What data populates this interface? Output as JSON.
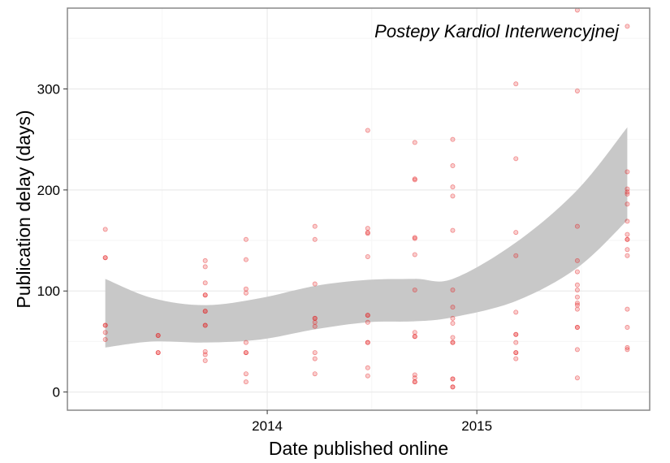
{
  "chart_data": {
    "type": "scatter",
    "title": "",
    "annotation": "Postepy Kardiol Interwencyjnej",
    "xlabel": "Date published online",
    "ylabel": "Publication delay (days)",
    "x_ticks": [
      "2014",
      "2015"
    ],
    "y_ticks": [
      0,
      100,
      200,
      300
    ],
    "xlim": [
      "2013-01-18",
      "2015-10-29"
    ],
    "ylim": [
      -18,
      380
    ],
    "grid": true,
    "legend": "none",
    "colors": {
      "points": "#e41a1c",
      "band": "#c8c8c8",
      "panel_border": "#888888",
      "grid_major": "#ebebeb",
      "grid_minor": "#f6f6f6"
    },
    "series": [
      {
        "kind": "points",
        "points": [
          [
            "2013-03-25",
            161
          ],
          [
            "2013-03-25",
            133
          ],
          [
            "2013-03-25",
            133
          ],
          [
            "2013-03-25",
            66
          ],
          [
            "2013-03-25",
            66
          ],
          [
            "2013-03-25",
            59
          ],
          [
            "2013-03-25",
            52
          ],
          [
            "2013-06-25",
            56
          ],
          [
            "2013-06-25",
            56
          ],
          [
            "2013-06-25",
            39
          ],
          [
            "2013-06-25",
            39
          ],
          [
            "2013-09-15",
            130
          ],
          [
            "2013-09-15",
            124
          ],
          [
            "2013-09-15",
            108
          ],
          [
            "2013-09-15",
            96
          ],
          [
            "2013-09-15",
            96
          ],
          [
            "2013-09-15",
            80
          ],
          [
            "2013-09-15",
            80
          ],
          [
            "2013-09-15",
            66
          ],
          [
            "2013-09-15",
            66
          ],
          [
            "2013-09-15",
            40
          ],
          [
            "2013-09-15",
            37
          ],
          [
            "2013-09-15",
            31
          ],
          [
            "2013-11-25",
            151
          ],
          [
            "2013-11-25",
            131
          ],
          [
            "2013-11-25",
            102
          ],
          [
            "2013-11-25",
            98
          ],
          [
            "2013-11-25",
            49
          ],
          [
            "2013-11-25",
            39
          ],
          [
            "2013-11-25",
            39
          ],
          [
            "2013-11-25",
            18
          ],
          [
            "2013-11-25",
            10
          ],
          [
            "2014-03-25",
            164
          ],
          [
            "2014-03-25",
            151
          ],
          [
            "2014-03-25",
            107
          ],
          [
            "2014-03-25",
            73
          ],
          [
            "2014-03-25",
            73
          ],
          [
            "2014-03-25",
            69
          ],
          [
            "2014-03-25",
            65
          ],
          [
            "2014-03-25",
            39
          ],
          [
            "2014-03-25",
            33
          ],
          [
            "2014-03-25",
            18
          ],
          [
            "2014-06-25",
            259
          ],
          [
            "2014-06-25",
            162
          ],
          [
            "2014-06-25",
            158
          ],
          [
            "2014-06-25",
            157
          ],
          [
            "2014-06-25",
            134
          ],
          [
            "2014-06-25",
            76
          ],
          [
            "2014-06-25",
            76
          ],
          [
            "2014-06-25",
            69
          ],
          [
            "2014-06-25",
            49
          ],
          [
            "2014-06-25",
            49
          ],
          [
            "2014-06-25",
            24
          ],
          [
            "2014-06-25",
            16
          ],
          [
            "2014-09-15",
            247
          ],
          [
            "2014-09-15",
            211
          ],
          [
            "2014-09-15",
            210
          ],
          [
            "2014-09-15",
            153
          ],
          [
            "2014-09-15",
            152
          ],
          [
            "2014-09-15",
            136
          ],
          [
            "2014-09-15",
            101
          ],
          [
            "2014-09-15",
            59
          ],
          [
            "2014-09-15",
            55
          ],
          [
            "2014-09-15",
            55
          ],
          [
            "2014-09-15",
            17
          ],
          [
            "2014-09-15",
            14
          ],
          [
            "2014-09-15",
            10
          ],
          [
            "2014-09-15",
            10
          ],
          [
            "2014-11-20",
            250
          ],
          [
            "2014-11-20",
            224
          ],
          [
            "2014-11-20",
            203
          ],
          [
            "2014-11-20",
            194
          ],
          [
            "2014-11-20",
            160
          ],
          [
            "2014-11-20",
            101
          ],
          [
            "2014-11-20",
            84
          ],
          [
            "2014-11-20",
            73
          ],
          [
            "2014-11-20",
            68
          ],
          [
            "2014-11-20",
            54
          ],
          [
            "2014-11-20",
            49
          ],
          [
            "2014-11-20",
            49
          ],
          [
            "2014-11-20",
            13
          ],
          [
            "2014-11-20",
            13
          ],
          [
            "2014-11-20",
            5
          ],
          [
            "2014-11-20",
            5
          ],
          [
            "2015-03-10",
            305
          ],
          [
            "2015-03-10",
            231
          ],
          [
            "2015-03-10",
            158
          ],
          [
            "2015-03-10",
            135
          ],
          [
            "2015-03-10",
            79
          ],
          [
            "2015-03-10",
            57
          ],
          [
            "2015-03-10",
            57
          ],
          [
            "2015-03-10",
            49
          ],
          [
            "2015-03-10",
            39
          ],
          [
            "2015-03-10",
            39
          ],
          [
            "2015-03-10",
            33
          ],
          [
            "2015-06-25",
            378
          ],
          [
            "2015-06-25",
            298
          ],
          [
            "2015-06-25",
            164
          ],
          [
            "2015-06-25",
            130
          ],
          [
            "2015-06-25",
            119
          ],
          [
            "2015-06-25",
            106
          ],
          [
            "2015-06-25",
            101
          ],
          [
            "2015-06-25",
            94
          ],
          [
            "2015-06-25",
            88
          ],
          [
            "2015-06-25",
            86
          ],
          [
            "2015-06-25",
            82
          ],
          [
            "2015-06-25",
            64
          ],
          [
            "2015-06-25",
            64
          ],
          [
            "2015-06-25",
            42
          ],
          [
            "2015-06-25",
            14
          ],
          [
            "2015-09-20",
            362
          ],
          [
            "2015-09-20",
            218
          ],
          [
            "2015-09-20",
            201
          ],
          [
            "2015-09-20",
            198
          ],
          [
            "2015-09-20",
            196
          ],
          [
            "2015-09-20",
            186
          ],
          [
            "2015-09-20",
            169
          ],
          [
            "2015-09-20",
            156
          ],
          [
            "2015-09-20",
            151
          ],
          [
            "2015-09-20",
            151
          ],
          [
            "2015-09-20",
            141
          ],
          [
            "2015-09-20",
            135
          ],
          [
            "2015-09-20",
            82
          ],
          [
            "2015-09-20",
            64
          ],
          [
            "2015-09-20",
            44
          ],
          [
            "2015-09-20",
            42
          ]
        ]
      },
      {
        "kind": "confidence_band",
        "x": [
          "2013-03-25",
          "2013-06-15",
          "2013-09-15",
          "2013-12-20",
          "2014-03-25",
          "2014-06-25",
          "2014-09-15",
          "2014-11-20",
          "2015-03-10",
          "2015-06-25",
          "2015-09-20"
        ],
        "upper": [
          112,
          93,
          86,
          93,
          105,
          111,
          112,
          112,
          148,
          200,
          262
        ],
        "lower": [
          44,
          50,
          49,
          52,
          62,
          69,
          70,
          74,
          90,
          123,
          170
        ]
      }
    ]
  }
}
